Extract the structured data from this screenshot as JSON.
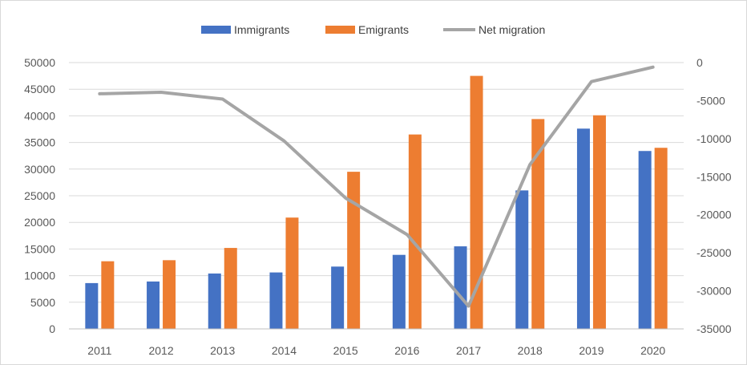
{
  "chart_data": {
    "type": "bar",
    "categories": [
      "2011",
      "2012",
      "2013",
      "2014",
      "2015",
      "2016",
      "2017",
      "2018",
      "2019",
      "2020"
    ],
    "series": [
      {
        "name": "Immigrants",
        "kind": "bar",
        "axis": "left",
        "color": "#4472c4",
        "values": [
          8600,
          8900,
          10400,
          10600,
          11700,
          13900,
          15500,
          26000,
          37600,
          33400
        ]
      },
      {
        "name": "Emigrants",
        "kind": "bar",
        "axis": "left",
        "color": "#ed7d31",
        "values": [
          12700,
          12900,
          15200,
          20900,
          29500,
          36500,
          47500,
          39400,
          40100,
          34000
        ]
      },
      {
        "name": "Net migration",
        "kind": "line",
        "axis": "right",
        "color": "#a5a5a5",
        "values": [
          -4100,
          -3900,
          -4800,
          -10300,
          -17800,
          -22600,
          -32000,
          -13400,
          -2500,
          -600
        ]
      }
    ],
    "y_left": {
      "min": 0,
      "max": 50000,
      "step": 5000,
      "ticks": [
        "0",
        "5000",
        "10000",
        "15000",
        "20000",
        "25000",
        "30000",
        "35000",
        "40000",
        "45000",
        "50000"
      ]
    },
    "y_right": {
      "min": -35000,
      "max": 0,
      "step": 5000,
      "ticks": [
        "-35000",
        "-30000",
        "-25000",
        "-20000",
        "-15000",
        "-10000",
        "-5000",
        "0"
      ]
    },
    "grid": true,
    "legend_position": "top-center"
  }
}
